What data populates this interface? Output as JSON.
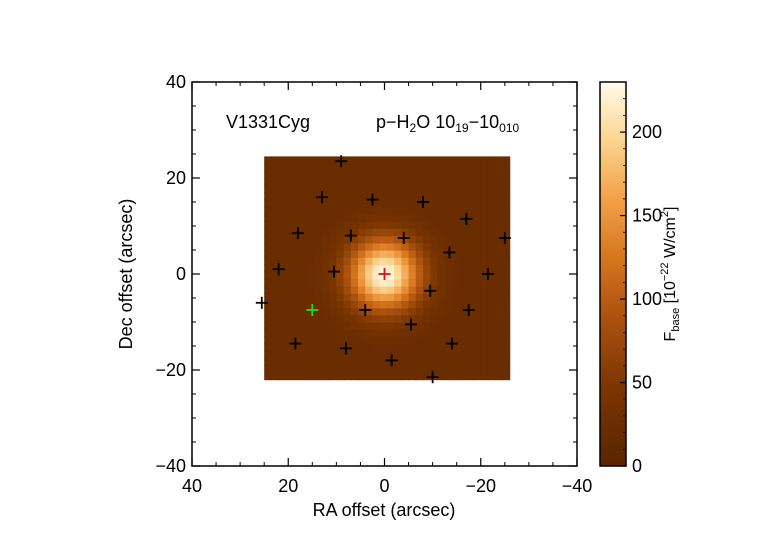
{
  "chart_data": {
    "type": "heatmap",
    "object_label": "V1331Cyg",
    "line_label": {
      "prefix": "p−H",
      "sub1": "2",
      "mid": "O 10",
      "sub2": "19",
      "dash": "−10",
      "sub3": "010"
    },
    "xlabel": "RA offset (arcsec)",
    "ylabel": "Dec offset (arcsec)",
    "xlim": [
      40,
      -40
    ],
    "ylim": [
      -40,
      40
    ],
    "x_ticks": [
      40,
      20,
      0,
      -20,
      -40
    ],
    "x_tick_labels": [
      "40",
      "20",
      "0",
      "−20",
      "−40"
    ],
    "y_ticks": [
      40,
      20,
      0,
      -20,
      -40
    ],
    "y_tick_labels": [
      "40",
      "20",
      "0",
      "−20",
      "−40"
    ],
    "map_extent": {
      "x": [
        25,
        -25
      ],
      "y": [
        -22,
        23.5
      ]
    },
    "emission": {
      "peak_ra": 0,
      "peak_dec": 0,
      "peak_value": 228,
      "base_value": 22,
      "units_note": "10^-22 W/cm^2"
    },
    "spaxels_black": [
      [
        9,
        23.5
      ],
      [
        13,
        16
      ],
      [
        2.5,
        15.5
      ],
      [
        -8,
        15
      ],
      [
        -17,
        11.5
      ],
      [
        18,
        8.5
      ],
      [
        7,
        8
      ],
      [
        -4,
        7.5
      ],
      [
        -25,
        7.5
      ],
      [
        -13.5,
        4.5
      ],
      [
        22,
        1
      ],
      [
        10.5,
        0.5
      ],
      [
        -21.5,
        0
      ],
      [
        -9.5,
        -3.5
      ],
      [
        4,
        -7.5
      ],
      [
        -17.5,
        -7.5
      ],
      [
        -5.5,
        -10.5
      ],
      [
        18.5,
        -14.5
      ],
      [
        8,
        -15.5
      ],
      [
        -14,
        -14.5
      ],
      [
        -1.5,
        -18
      ],
      [
        -10,
        -21.5
      ],
      [
        25.5,
        -6
      ]
    ],
    "spaxel_green": [
      15,
      -7.5
    ],
    "spaxel_red": [
      0,
      0
    ],
    "colorbar": {
      "label_main": "F",
      "label_sub": "base",
      "label_rest": " [10",
      "label_exp": "−22",
      "label_tail": " W/cm",
      "label_exp2": "2",
      "label_close": "]",
      "range": [
        0,
        230
      ],
      "ticks": [
        0,
        50,
        100,
        150,
        200
      ],
      "tick_labels": [
        "0",
        "50",
        "100",
        "150",
        "200"
      ]
    }
  }
}
